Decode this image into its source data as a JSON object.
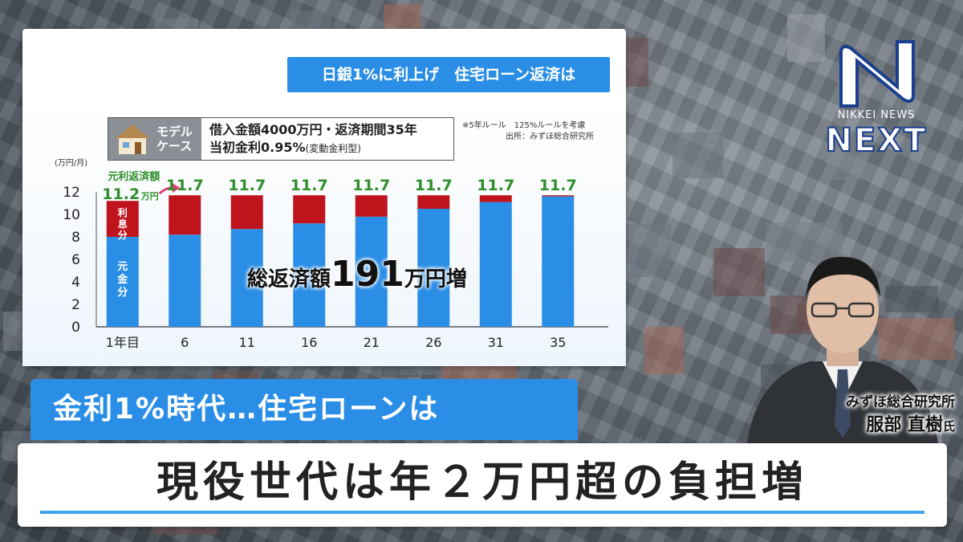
{
  "chart_title": "日銀1%に利上げ　住宅ローン返済は",
  "model_case": {
    "label_line1": "モデル",
    "label_line2": "ケース",
    "line1": "借入金額4000万円・返済期間35年",
    "line2_main": "当初金利0.95%",
    "line2_note": "(変動金利型)",
    "icon": "house-icon"
  },
  "notes": {
    "line1": "※5年ルール　125%ルールを考慮",
    "line2": "出所：みずほ総合研究所"
  },
  "chart_data": {
    "type": "bar",
    "stacked": true,
    "ylabel": "(万円/月)",
    "ylim": [
      0,
      12
    ],
    "yticks": [
      0,
      2,
      4,
      6,
      8,
      10,
      12
    ],
    "categories": [
      "1年目",
      "6",
      "11",
      "16",
      "21",
      "26",
      "31",
      "35"
    ],
    "series": [
      {
        "name": "元金分",
        "color": "#2b8ee6",
        "values": [
          8.0,
          8.2,
          8.7,
          9.2,
          9.8,
          10.5,
          11.1,
          11.6
        ]
      },
      {
        "name": "利息分",
        "color": "#c0141c",
        "values": [
          3.2,
          3.5,
          3.0,
          2.5,
          1.9,
          1.2,
          0.6,
          0.1
        ]
      }
    ],
    "totals": [
      11.2,
      11.7,
      11.7,
      11.7,
      11.7,
      11.7,
      11.7,
      11.7
    ],
    "total_labels": [
      "11.2",
      "11.7",
      "11.7",
      "11.7",
      "11.7",
      "11.7",
      "11.7",
      "11.7"
    ],
    "first_total_caption": "元利返済額",
    "first_total_unit": "万円",
    "first_bar_labels": {
      "interest": "利息分",
      "principal": "元金分"
    }
  },
  "total_increase": {
    "prefix": "総返済額",
    "number": "191",
    "suffix": "万円増"
  },
  "logo": {
    "brand": "NIKKEI NEWS",
    "name": "NEXT",
    "color": "#1a3f8f"
  },
  "guest": {
    "org": "みずほ総合研究所",
    "name": "服部 直樹",
    "suffix": "氏"
  },
  "sub_headline": "金利1%時代…住宅ローンは",
  "main_headline": "現役世代は年２万円超の負担増"
}
